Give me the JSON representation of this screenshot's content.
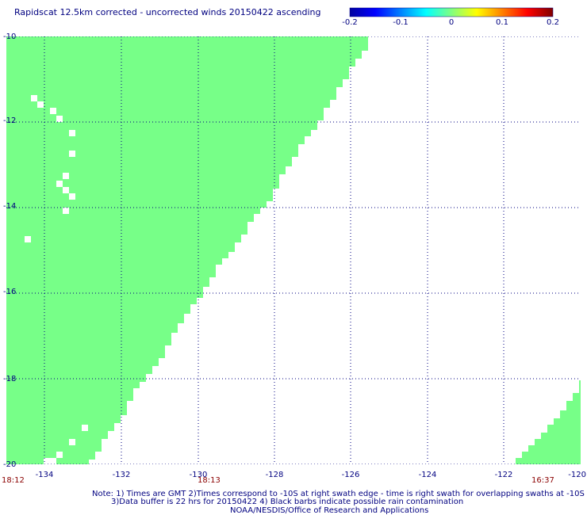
{
  "title": "Rapidscat 12.5km corrected - uncorrected winds 20150422 ascending",
  "colorbar": {
    "ticks": [
      "-0.2",
      "-0.1",
      "0",
      "0.1",
      "0.2"
    ],
    "colors": [
      "#0000a0",
      "#0000ff",
      "#0080ff",
      "#00ffff",
      "#80ff80",
      "#ffff00",
      "#ff8000",
      "#ff0000",
      "#800000"
    ]
  },
  "map": {
    "lon_labels": [
      "-134",
      "-132",
      "-130",
      "-128",
      "-126",
      "-124",
      "-122",
      "-120"
    ],
    "lat_labels": [
      "-10",
      "-12",
      "-14",
      "-16",
      "-18",
      "-20"
    ],
    "swath_color": "#77ff88",
    "grid_color": "#000080",
    "grid_style": "dotted"
  },
  "times": [
    "18:12",
    "18:13",
    "16:37"
  ],
  "notes": [
    "Note: 1) Times are GMT 2)Times correspond to -10S at right swath edge - time is right swath for overlapping swaths at -10S",
    "3)Data buffer is 22 hrs for 20150422 4) Black barbs indicate possible rain contamination",
    "NOAA/NESDIS/Office of Research and Applications"
  ]
}
